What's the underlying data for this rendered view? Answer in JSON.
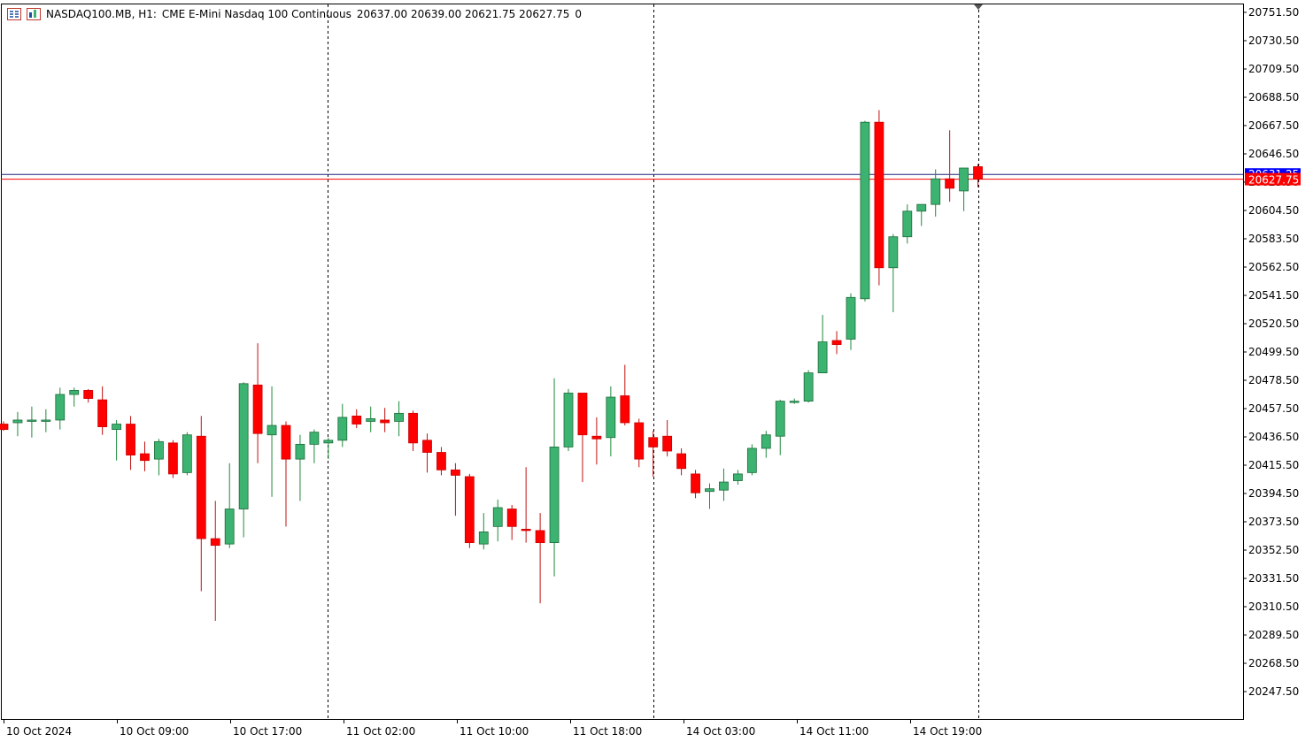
{
  "header": {
    "symbol": "NASDAQ100.MB, H1:",
    "description": "CME E-Mini Nasdaq 100 Continuous",
    "ohlc": "20637.00 20639.00 20621.75 20627.75",
    "volume": "0",
    "icons": [
      "menu-list-icon",
      "chart-window-icon"
    ]
  },
  "colors": {
    "bull_fill": "#3cb371",
    "bear_fill": "#ff0000",
    "bull_wick": "#1e8a3a",
    "bear_wick": "#c01010",
    "axis": "#000000",
    "bid_line": "#ff0000",
    "ask_line": "#1a237e",
    "price_label_bg": "#ff0000",
    "hidden_label_bg": "#0000ff"
  },
  "price_labels": {
    "current": "20627.75",
    "hidden": "20631.25"
  },
  "chart_data": {
    "type": "candlestick",
    "timeframe": "H1",
    "y_ticks": [
      "20751.50",
      "20730.50",
      "20709.50",
      "20688.50",
      "20667.50",
      "20646.50",
      "20625.50",
      "20604.50",
      "20583.50",
      "20562.50",
      "20541.50",
      "20520.50",
      "20499.50",
      "20478.50",
      "20457.50",
      "20436.50",
      "20415.50",
      "20394.50",
      "20373.50",
      "20352.50",
      "20331.50",
      "20310.50",
      "20289.50",
      "20268.50",
      "20247.50"
    ],
    "ylim": [
      20240.5,
      20752.0
    ],
    "x_labels": [
      "10 Oct 2024",
      "10 Oct 09:00",
      "10 Oct 17:00",
      "11 Oct 02:00",
      "11 Oct 10:00",
      "11 Oct 18:00",
      "14 Oct 03:00",
      "14 Oct 11:00",
      "14 Oct 19:00"
    ],
    "bid": 20627.75,
    "ask": 20631.25,
    "candles": [
      {
        "o": 20446,
        "h": 20448,
        "l": 20441,
        "c": 20442
      },
      {
        "o": 20447,
        "h": 20455,
        "l": 20437,
        "c": 20449
      },
      {
        "o": 20448,
        "h": 20459,
        "l": 20436,
        "c": 20449
      },
      {
        "o": 20449,
        "h": 20457,
        "l": 20440,
        "c": 20449
      },
      {
        "o": 20449,
        "h": 20473,
        "l": 20442,
        "c": 20468
      },
      {
        "o": 20468,
        "h": 20473,
        "l": 20459,
        "c": 20471
      },
      {
        "o": 20471,
        "h": 20472,
        "l": 20462,
        "c": 20465
      },
      {
        "o": 20464,
        "h": 20474,
        "l": 20438,
        "c": 20444
      },
      {
        "o": 20442,
        "h": 20449,
        "l": 20419,
        "c": 20446
      },
      {
        "o": 20446,
        "h": 20452,
        "l": 20412,
        "c": 20423
      },
      {
        "o": 20424,
        "h": 20433,
        "l": 20411,
        "c": 20419
      },
      {
        "o": 20420,
        "h": 20435,
        "l": 20408,
        "c": 20433
      },
      {
        "o": 20432,
        "h": 20434,
        "l": 20406,
        "c": 20409
      },
      {
        "o": 20410,
        "h": 20440,
        "l": 20408,
        "c": 20438
      },
      {
        "o": 20437,
        "h": 20452,
        "l": 20322,
        "c": 20361
      },
      {
        "o": 20361,
        "h": 20389,
        "l": 20300,
        "c": 20356
      },
      {
        "o": 20357,
        "h": 20417,
        "l": 20354,
        "c": 20383
      },
      {
        "o": 20383,
        "h": 20477,
        "l": 20362,
        "c": 20476
      },
      {
        "o": 20475,
        "h": 20506,
        "l": 20417,
        "c": 20439
      },
      {
        "o": 20438,
        "h": 20474,
        "l": 20392,
        "c": 20445
      },
      {
        "o": 20445,
        "h": 20448,
        "l": 20370,
        "c": 20420
      },
      {
        "o": 20420,
        "h": 20438,
        "l": 20389,
        "c": 20431
      },
      {
        "o": 20431,
        "h": 20442,
        "l": 20417,
        "c": 20440
      },
      {
        "o": 20432,
        "h": 20436,
        "l": 20420,
        "c": 20434
      },
      {
        "o": 20434,
        "h": 20461,
        "l": 20429,
        "c": 20451
      },
      {
        "o": 20452,
        "h": 20457,
        "l": 20443,
        "c": 20446
      },
      {
        "o": 20448,
        "h": 20459,
        "l": 20440,
        "c": 20450
      },
      {
        "o": 20449,
        "h": 20458,
        "l": 20440,
        "c": 20447
      },
      {
        "o": 20448,
        "h": 20463,
        "l": 20437,
        "c": 20454
      },
      {
        "o": 20454,
        "h": 20456,
        "l": 20426,
        "c": 20432
      },
      {
        "o": 20434,
        "h": 20439,
        "l": 20410,
        "c": 20425
      },
      {
        "o": 20425,
        "h": 20429,
        "l": 20408,
        "c": 20412
      },
      {
        "o": 20412,
        "h": 20417,
        "l": 20378,
        "c": 20408
      },
      {
        "o": 20407,
        "h": 20409,
        "l": 20354,
        "c": 20358
      },
      {
        "o": 20357,
        "h": 20380,
        "l": 20353,
        "c": 20366
      },
      {
        "o": 20370,
        "h": 20390,
        "l": 20359,
        "c": 20384
      },
      {
        "o": 20383,
        "h": 20386,
        "l": 20360,
        "c": 20370
      },
      {
        "o": 20368,
        "h": 20414,
        "l": 20358,
        "c": 20367
      },
      {
        "o": 20367,
        "h": 20380,
        "l": 20313,
        "c": 20358
      },
      {
        "o": 20358,
        "h": 20480,
        "l": 20333,
        "c": 20429
      },
      {
        "o": 20429,
        "h": 20472,
        "l": 20426,
        "c": 20469
      },
      {
        "o": 20469,
        "h": 20469,
        "l": 20403,
        "c": 20438
      },
      {
        "o": 20437,
        "h": 20451,
        "l": 20416,
        "c": 20435
      },
      {
        "o": 20436,
        "h": 20474,
        "l": 20422,
        "c": 20466
      },
      {
        "o": 20467,
        "h": 20490,
        "l": 20445,
        "c": 20447
      },
      {
        "o": 20447,
        "h": 20450,
        "l": 20414,
        "c": 20420
      },
      {
        "o": 20436,
        "h": 20441,
        "l": 20407,
        "c": 20429
      },
      {
        "o": 20437,
        "h": 20449,
        "l": 20422,
        "c": 20426
      },
      {
        "o": 20424,
        "h": 20428,
        "l": 20408,
        "c": 20413
      },
      {
        "o": 20409,
        "h": 20412,
        "l": 20391,
        "c": 20395
      },
      {
        "o": 20396,
        "h": 20402,
        "l": 20383,
        "c": 20398
      },
      {
        "o": 20397,
        "h": 20413,
        "l": 20389,
        "c": 20403
      },
      {
        "o": 20404,
        "h": 20412,
        "l": 20401,
        "c": 20409
      },
      {
        "o": 20410,
        "h": 20431,
        "l": 20408,
        "c": 20428
      },
      {
        "o": 20428,
        "h": 20441,
        "l": 20421,
        "c": 20438
      },
      {
        "o": 20437,
        "h": 20464,
        "l": 20423,
        "c": 20463
      },
      {
        "o": 20462,
        "h": 20465,
        "l": 20461,
        "c": 20463
      },
      {
        "o": 20463,
        "h": 20486,
        "l": 20462,
        "c": 20484
      },
      {
        "o": 20484,
        "h": 20527,
        "l": 20484,
        "c": 20507
      },
      {
        "o": 20508,
        "h": 20515,
        "l": 20498,
        "c": 20505
      },
      {
        "o": 20509,
        "h": 20543,
        "l": 20501,
        "c": 20540
      },
      {
        "o": 20539,
        "h": 20671,
        "l": 20537,
        "c": 20670
      },
      {
        "o": 20670,
        "h": 20679,
        "l": 20549,
        "c": 20562
      },
      {
        "o": 20562,
        "h": 20587,
        "l": 20529,
        "c": 20585
      },
      {
        "o": 20585,
        "h": 20609,
        "l": 20580,
        "c": 20604
      },
      {
        "o": 20604,
        "h": 20609,
        "l": 20593,
        "c": 20609
      },
      {
        "o": 20609,
        "h": 20635,
        "l": 20600,
        "c": 20628
      },
      {
        "o": 20628,
        "h": 20664,
        "l": 20611,
        "c": 20621
      },
      {
        "o": 20619,
        "h": 20636,
        "l": 20604,
        "c": 20636
      },
      {
        "o": 20637,
        "h": 20639,
        "l": 20621.75,
        "c": 20627.75
      }
    ]
  }
}
